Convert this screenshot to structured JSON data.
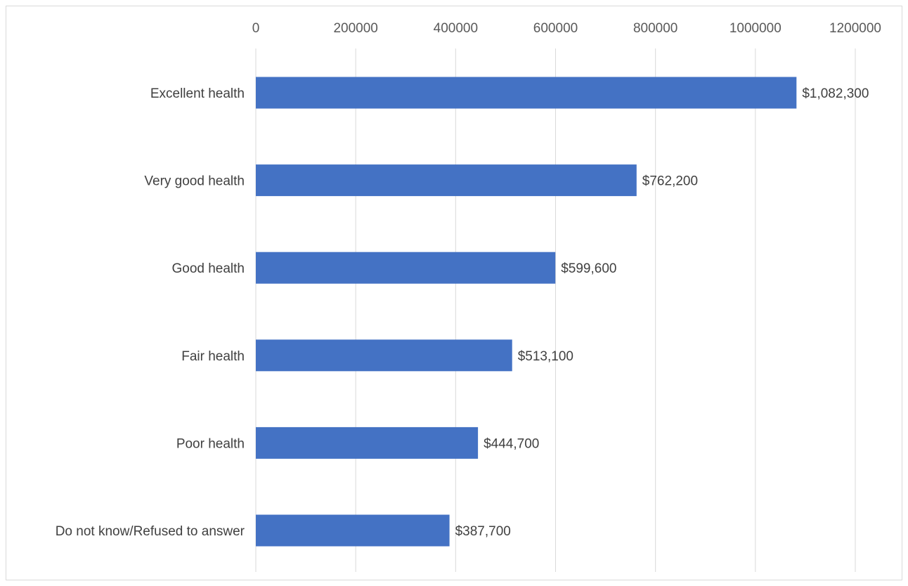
{
  "chart_data": {
    "type": "bar",
    "orientation": "horizontal",
    "categories": [
      "Excellent health",
      "Very good health",
      "Good health",
      "Fair health",
      "Poor health",
      "Do not know/Refused to answer"
    ],
    "values": [
      1082300,
      762200,
      599600,
      513100,
      444700,
      387700
    ],
    "data_labels": [
      "$1,082,300",
      "$762,200",
      "$599,600",
      "$513,100",
      "$444,700",
      "$387,700"
    ],
    "x_ticks": [
      "0",
      "200000",
      "400000",
      "600000",
      "800000",
      "1000000",
      "1200000"
    ],
    "xlim": [
      0,
      1200000
    ],
    "title": "",
    "xlabel": "",
    "ylabel": "",
    "x_axis_position": "top",
    "grid": true,
    "legend": "none",
    "bar_color": "#4472C4",
    "grid_color": "#d9d9d9",
    "label_color": "#404040",
    "tick_color": "#595959"
  }
}
